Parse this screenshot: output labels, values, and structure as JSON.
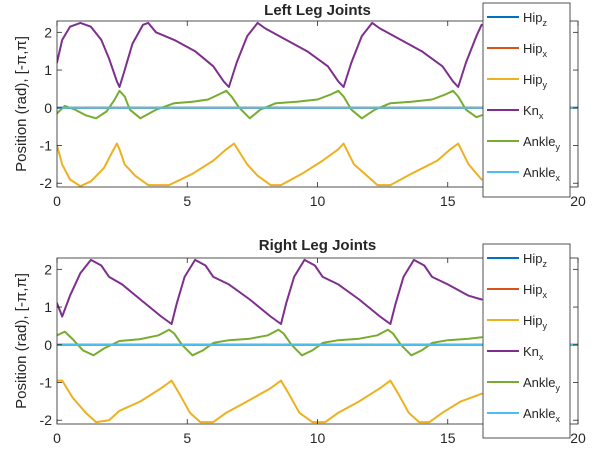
{
  "ylabel": "Position (rad), [-π,π]",
  "legend_labels": [
    {
      "base": "Hip",
      "sub": "z",
      "color": "#0072BD"
    },
    {
      "base": "Hip",
      "sub": "x",
      "color": "#D95319"
    },
    {
      "base": "Hip",
      "sub": "y",
      "color": "#EDB120"
    },
    {
      "base": "Kn",
      "sub": "x",
      "color": "#7E2F8E"
    },
    {
      "base": "Ankle",
      "sub": "y",
      "color": "#77AC30"
    },
    {
      "base": "Ankle",
      "sub": "x",
      "color": "#4DBEEE"
    }
  ],
  "chart_data": [
    {
      "type": "line",
      "title": "Left Leg Joints",
      "ylabel": "Position (rad), [-π,π]",
      "xlim": [
        0,
        20
      ],
      "ylim": [
        -2.1,
        2.3
      ],
      "xticks": [
        0,
        5,
        10,
        15,
        20
      ],
      "yticks": [
        -2,
        -1,
        0,
        1,
        2
      ],
      "legend_position": "right",
      "series": [
        {
          "name": "Hipz",
          "color": "#0072BD",
          "x": [
            0,
            20
          ],
          "y": [
            0,
            0
          ]
        },
        {
          "name": "Hipx",
          "color": "#D95319",
          "x": [
            0,
            20
          ],
          "y": [
            0,
            0
          ]
        },
        {
          "name": "Hipy",
          "color": "#EDB120",
          "x": [
            0,
            0.2,
            0.5,
            0.9,
            1.3,
            1.8,
            2.1,
            2.3,
            2.4,
            2.6,
            3.0,
            3.5,
            4.3,
            5.2,
            6.0,
            6.5,
            6.8,
            7.3,
            7.7,
            8.2,
            8.6,
            9.4,
            10.2,
            10.8,
            11.0,
            11.4,
            11.9,
            12.3,
            12.8,
            13.6,
            14.6,
            15.1,
            15.4,
            15.8,
            16.3
          ],
          "y": [
            -1.0,
            -1.5,
            -1.9,
            -2.08,
            -1.95,
            -1.6,
            -1.2,
            -0.95,
            -1.1,
            -1.5,
            -1.8,
            -2.05,
            -2.05,
            -1.75,
            -1.4,
            -1.1,
            -0.95,
            -1.5,
            -1.8,
            -2.05,
            -2.05,
            -1.75,
            -1.4,
            -1.1,
            -0.95,
            -1.5,
            -1.8,
            -2.05,
            -2.05,
            -1.75,
            -1.4,
            -1.1,
            -0.95,
            -1.5,
            -1.9
          ]
        },
        {
          "name": "Knx",
          "color": "#7E2F8E",
          "x": [
            0,
            0.2,
            0.5,
            0.9,
            1.3,
            1.7,
            2.0,
            2.3,
            2.4,
            2.6,
            2.9,
            3.3,
            3.5,
            3.8,
            4.5,
            5.3,
            6.0,
            6.4,
            6.6,
            6.9,
            7.3,
            7.7,
            8.0,
            8.8,
            9.6,
            10.4,
            10.8,
            11.0,
            11.3,
            11.7,
            12.1,
            12.4,
            13.2,
            14.0,
            14.8,
            15.2,
            15.4,
            15.7,
            16.1,
            16.3
          ],
          "y": [
            1.2,
            1.8,
            2.15,
            2.25,
            2.15,
            1.8,
            1.3,
            0.7,
            0.55,
            1.0,
            1.7,
            2.2,
            2.25,
            2.0,
            1.8,
            1.5,
            1.1,
            0.7,
            0.55,
            1.2,
            1.9,
            2.25,
            2.1,
            1.8,
            1.5,
            1.1,
            0.7,
            0.55,
            1.2,
            1.9,
            2.25,
            2.1,
            1.8,
            1.5,
            1.1,
            0.7,
            0.55,
            1.2,
            1.9,
            2.2
          ]
        },
        {
          "name": "Ankley",
          "color": "#77AC30",
          "x": [
            0,
            0.3,
            0.7,
            1.1,
            1.5,
            1.9,
            2.2,
            2.4,
            2.6,
            2.8,
            3.2,
            3.8,
            4.5,
            5.2,
            5.8,
            6.2,
            6.5,
            6.7,
            7.0,
            7.4,
            7.8,
            8.4,
            9.2,
            10.0,
            10.5,
            10.8,
            11.0,
            11.3,
            11.7,
            12.2,
            12.8,
            13.6,
            14.4,
            14.9,
            15.2,
            15.4,
            15.7,
            16.1,
            16.3
          ],
          "y": [
            -0.15,
            0.05,
            -0.05,
            -0.2,
            -0.28,
            -0.1,
            0.2,
            0.45,
            0.3,
            -0.05,
            -0.28,
            -0.05,
            0.12,
            0.16,
            0.22,
            0.35,
            0.45,
            0.3,
            0.0,
            -0.28,
            -0.05,
            0.12,
            0.16,
            0.22,
            0.35,
            0.45,
            0.3,
            -0.05,
            -0.28,
            -0.05,
            0.12,
            0.16,
            0.22,
            0.35,
            0.45,
            0.3,
            -0.05,
            -0.25,
            -0.2
          ]
        },
        {
          "name": "Anklex",
          "color": "#4DBEEE",
          "x": [
            0,
            20
          ],
          "y": [
            0,
            0
          ]
        }
      ]
    },
    {
      "type": "line",
      "title": "Right Leg Joints",
      "ylabel": "Position (rad), [-π,π]",
      "xlim": [
        0,
        20
      ],
      "ylim": [
        -2.1,
        2.3
      ],
      "xticks": [
        0,
        5,
        10,
        15,
        20
      ],
      "yticks": [
        -2,
        -1,
        0,
        1,
        2
      ],
      "legend_position": "right",
      "series": [
        {
          "name": "Hipz",
          "color": "#0072BD",
          "x": [
            0,
            20
          ],
          "y": [
            0,
            0
          ]
        },
        {
          "name": "Hipx",
          "color": "#D95319",
          "x": [
            0,
            20
          ],
          "y": [
            0,
            0
          ]
        },
        {
          "name": "Hipy",
          "color": "#EDB120",
          "x": [
            0,
            0.2,
            0.6,
            1.1,
            1.5,
            2.0,
            2.4,
            3.2,
            4.0,
            4.4,
            4.7,
            5.1,
            5.5,
            6.0,
            6.5,
            7.3,
            8.2,
            8.6,
            8.9,
            9.3,
            9.8,
            10.3,
            10.8,
            11.6,
            12.4,
            12.8,
            13.1,
            13.5,
            13.9,
            14.3,
            14.8,
            15.5,
            16.3
          ],
          "y": [
            -0.95,
            -0.95,
            -1.4,
            -1.8,
            -2.05,
            -2.0,
            -1.75,
            -1.5,
            -1.15,
            -0.95,
            -1.3,
            -1.8,
            -2.05,
            -2.05,
            -1.8,
            -1.5,
            -1.15,
            -0.95,
            -1.3,
            -1.8,
            -2.05,
            -2.05,
            -1.8,
            -1.5,
            -1.15,
            -0.95,
            -1.3,
            -1.8,
            -2.05,
            -2.05,
            -1.8,
            -1.5,
            -1.3
          ]
        },
        {
          "name": "Knx",
          "color": "#7E2F8E",
          "x": [
            0,
            0.2,
            0.5,
            0.9,
            1.3,
            1.7,
            2.0,
            2.5,
            3.2,
            4.0,
            4.4,
            4.6,
            4.9,
            5.3,
            5.7,
            6.0,
            6.6,
            7.4,
            8.2,
            8.6,
            8.8,
            9.1,
            9.5,
            9.9,
            10.2,
            10.8,
            11.6,
            12.4,
            12.8,
            13.0,
            13.3,
            13.7,
            14.1,
            14.4,
            15.0,
            15.8,
            16.3
          ],
          "y": [
            1.1,
            0.75,
            1.3,
            1.9,
            2.25,
            2.1,
            1.8,
            1.6,
            1.2,
            0.75,
            0.55,
            1.1,
            1.8,
            2.25,
            2.1,
            1.8,
            1.6,
            1.2,
            0.75,
            0.55,
            1.1,
            1.8,
            2.25,
            2.1,
            1.8,
            1.6,
            1.2,
            0.75,
            0.55,
            1.1,
            1.8,
            2.25,
            2.1,
            1.8,
            1.6,
            1.3,
            1.2
          ]
        },
        {
          "name": "Ankley",
          "color": "#77AC30",
          "x": [
            0,
            0.3,
            0.6,
            1.0,
            1.4,
            1.8,
            2.4,
            3.2,
            3.9,
            4.3,
            4.5,
            4.8,
            5.2,
            5.6,
            6.0,
            6.6,
            7.4,
            8.1,
            8.5,
            8.7,
            9.0,
            9.4,
            9.8,
            10.2,
            10.8,
            11.6,
            12.3,
            12.7,
            12.9,
            13.2,
            13.6,
            14.0,
            14.4,
            15.0,
            15.8,
            16.3
          ],
          "y": [
            0.25,
            0.35,
            0.15,
            -0.15,
            -0.28,
            -0.1,
            0.1,
            0.15,
            0.25,
            0.4,
            0.3,
            0.0,
            -0.28,
            -0.15,
            0.05,
            0.12,
            0.16,
            0.25,
            0.4,
            0.3,
            0.0,
            -0.28,
            -0.15,
            0.05,
            0.12,
            0.16,
            0.25,
            0.4,
            0.3,
            0.0,
            -0.28,
            -0.15,
            0.05,
            0.12,
            0.16,
            0.2
          ]
        },
        {
          "name": "Anklex",
          "color": "#4DBEEE",
          "x": [
            0,
            20
          ],
          "y": [
            0,
            0
          ]
        }
      ]
    }
  ]
}
